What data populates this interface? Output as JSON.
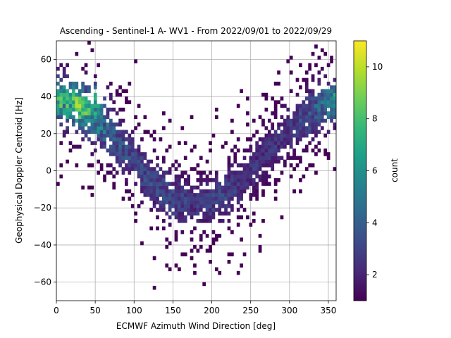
{
  "chart_data": {
    "type": "heatmap",
    "title": "Ascending - Sentinel-1 A- WV1 - From 2022/09/01 to 2022/09/29",
    "xlabel": "ECMWF Azimuth Wind Direction [deg]",
    "ylabel": "Geophysical Doppler Centroid [Hz]",
    "xlim": [
      0,
      360
    ],
    "ylim": [
      -70,
      70
    ],
    "xticks": [
      0,
      50,
      100,
      150,
      200,
      250,
      300,
      350
    ],
    "yticks": [
      -60,
      -40,
      -20,
      0,
      20,
      40,
      60
    ],
    "grid": true,
    "colormap": "viridis",
    "colorbar": {
      "label": "count",
      "range": [
        1,
        11
      ],
      "ticks": [
        2,
        4,
        6,
        8,
        10
      ]
    },
    "bin_size": {
      "x": 4,
      "y": 2
    },
    "density_model": {
      "description": "2D histogram of counts; ridge mean centroid as function of wind direction",
      "ridge": [
        {
          "x": 0,
          "y": 38,
          "peak_count": 8
        },
        {
          "x": 30,
          "y": 35,
          "peak_count": 10
        },
        {
          "x": 60,
          "y": 25,
          "peak_count": 6
        },
        {
          "x": 90,
          "y": 10,
          "peak_count": 4
        },
        {
          "x": 120,
          "y": -5,
          "peak_count": 4
        },
        {
          "x": 150,
          "y": -15,
          "peak_count": 4
        },
        {
          "x": 180,
          "y": -18,
          "peak_count": 3
        },
        {
          "x": 210,
          "y": -15,
          "peak_count": 4
        },
        {
          "x": 240,
          "y": -5,
          "peak_count": 3
        },
        {
          "x": 270,
          "y": 10,
          "peak_count": 3
        },
        {
          "x": 300,
          "y": 22,
          "peak_count": 3
        },
        {
          "x": 330,
          "y": 32,
          "peak_count": 5
        },
        {
          "x": 358,
          "y": 38,
          "peak_count": 7
        }
      ],
      "hotspots": [
        {
          "x": 20,
          "y": 40,
          "count": 10
        },
        {
          "x": 30,
          "y": 35,
          "count": 11
        },
        {
          "x": 50,
          "y": 38,
          "count": 9
        },
        {
          "x": 355,
          "y": 38,
          "count": 7
        }
      ]
    }
  }
}
